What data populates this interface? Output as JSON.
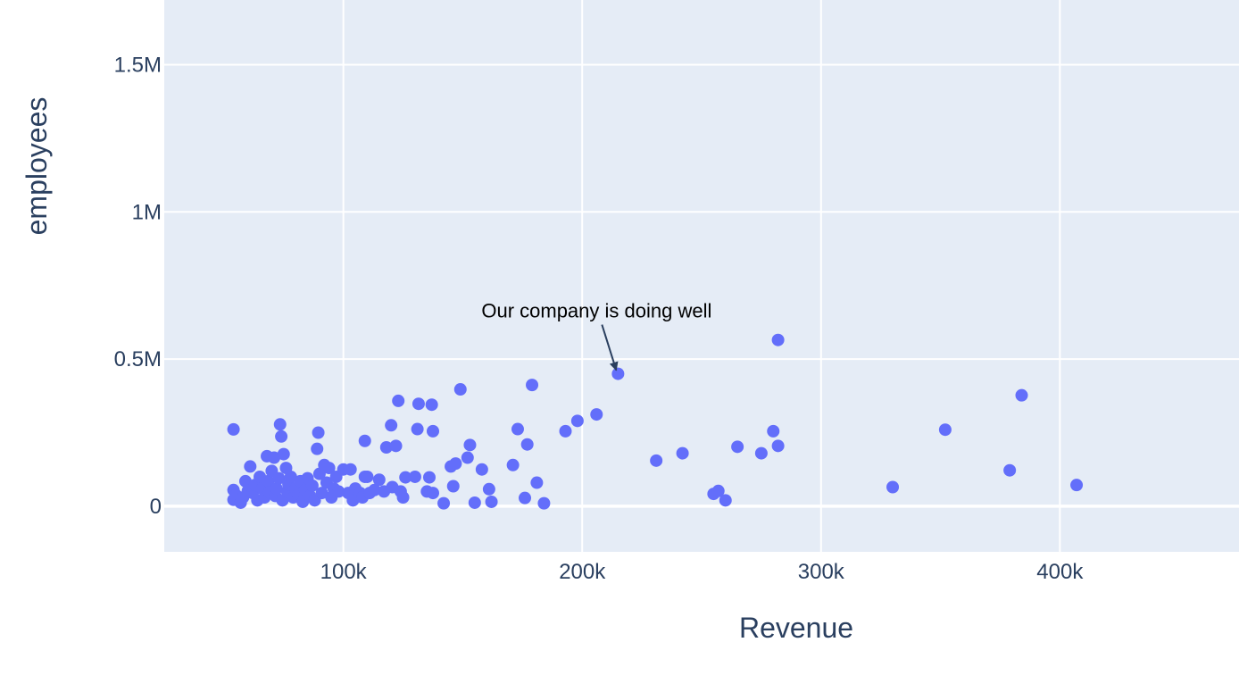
{
  "chart_data": {
    "type": "scatter",
    "xlabel": "Revenue",
    "ylabel": "employees",
    "xlim": [
      25000,
      475000
    ],
    "ylim": [
      -155000,
      1720000
    ],
    "x_ticks": [
      {
        "value": 100000,
        "label": "100k"
      },
      {
        "value": 200000,
        "label": "200k"
      },
      {
        "value": 300000,
        "label": "300k"
      },
      {
        "value": 400000,
        "label": "400k"
      }
    ],
    "y_ticks": [
      {
        "value": 0,
        "label": "0"
      },
      {
        "value": 500000,
        "label": "0.5M"
      },
      {
        "value": 1000000,
        "label": "1M"
      },
      {
        "value": 1500000,
        "label": "1.5M"
      }
    ],
    "grid": true,
    "colors": {
      "background": "#e5ecf6",
      "grid": "#ffffff",
      "marker": "#636efa",
      "text": "#2a3f5f"
    },
    "annotation": {
      "text": "Our company is doing well",
      "x": 215000,
      "y": 450000
    },
    "series": [
      {
        "points": [
          [
            54000,
            261000
          ],
          [
            54000,
            55000
          ],
          [
            54000,
            22000
          ],
          [
            55000,
            38000
          ],
          [
            57000,
            12000
          ],
          [
            58000,
            30000
          ],
          [
            59000,
            85000
          ],
          [
            60000,
            52000
          ],
          [
            61000,
            135000
          ],
          [
            62000,
            45000
          ],
          [
            63000,
            72000
          ],
          [
            64000,
            20000
          ],
          [
            65000,
            100000
          ],
          [
            66000,
            60000
          ],
          [
            67000,
            30000
          ],
          [
            68000,
            170000
          ],
          [
            68500,
            85000
          ],
          [
            69000,
            48000
          ],
          [
            70000,
            120000
          ],
          [
            71000,
            165000
          ],
          [
            71500,
            35000
          ],
          [
            72000,
            60000
          ],
          [
            73000,
            95000
          ],
          [
            73500,
            278000
          ],
          [
            74000,
            237000
          ],
          [
            74500,
            20000
          ],
          [
            75000,
            177000
          ],
          [
            76000,
            130000
          ],
          [
            76500,
            50000
          ],
          [
            77000,
            75000
          ],
          [
            78000,
            100000
          ],
          [
            79000,
            30000
          ],
          [
            80000,
            60000
          ],
          [
            81000,
            40000
          ],
          [
            82000,
            85000
          ],
          [
            83000,
            15000
          ],
          [
            84000,
            55000
          ],
          [
            85000,
            95000
          ],
          [
            86000,
            35000
          ],
          [
            87000,
            70000
          ],
          [
            88000,
            20000
          ],
          [
            89000,
            195000
          ],
          [
            89500,
            250000
          ],
          [
            90000,
            110000
          ],
          [
            91000,
            45000
          ],
          [
            92000,
            140000
          ],
          [
            93000,
            80000
          ],
          [
            94000,
            130000
          ],
          [
            95000,
            30000
          ],
          [
            96000,
            60000
          ],
          [
            97000,
            100000
          ],
          [
            98000,
            50000
          ],
          [
            100000,
            125000
          ],
          [
            102000,
            45000
          ],
          [
            103000,
            125000
          ],
          [
            104000,
            20000
          ],
          [
            105000,
            60000
          ],
          [
            107000,
            45000
          ],
          [
            108000,
            30000
          ],
          [
            109000,
            100000
          ],
          [
            109000,
            222000
          ],
          [
            110000,
            100000
          ],
          [
            111000,
            45000
          ],
          [
            113000,
            55000
          ],
          [
            115000,
            90000
          ],
          [
            117000,
            50000
          ],
          [
            118000,
            200000
          ],
          [
            120000,
            275000
          ],
          [
            120500,
            65000
          ],
          [
            122000,
            205000
          ],
          [
            123000,
            358000
          ],
          [
            124000,
            50000
          ],
          [
            125000,
            30000
          ],
          [
            126000,
            98000
          ],
          [
            130000,
            100000
          ],
          [
            131000,
            262000
          ],
          [
            131500,
            348000
          ],
          [
            135000,
            50000
          ],
          [
            136000,
            98000
          ],
          [
            137000,
            345000
          ],
          [
            137500,
            255000
          ],
          [
            137500,
            45000
          ],
          [
            142000,
            10000
          ],
          [
            145000,
            135000
          ],
          [
            146000,
            68000
          ],
          [
            147000,
            145000
          ],
          [
            149000,
            397000
          ],
          [
            152000,
            165000
          ],
          [
            153000,
            208000
          ],
          [
            155000,
            12000
          ],
          [
            158000,
            125000
          ],
          [
            161000,
            58000
          ],
          [
            162000,
            15000
          ],
          [
            171000,
            140000
          ],
          [
            173000,
            262000
          ],
          [
            176000,
            28000
          ],
          [
            177000,
            210000
          ],
          [
            179000,
            412000
          ],
          [
            181000,
            80000
          ],
          [
            184000,
            10000
          ],
          [
            193000,
            255000
          ],
          [
            198000,
            290000
          ],
          [
            206000,
            312000
          ],
          [
            215000,
            450000
          ],
          [
            231000,
            155000
          ],
          [
            242000,
            180000
          ],
          [
            255000,
            42000
          ],
          [
            257000,
            52000
          ],
          [
            260000,
            20000
          ],
          [
            265000,
            202000
          ],
          [
            275000,
            180000
          ],
          [
            280000,
            255000
          ],
          [
            282000,
            205000
          ],
          [
            282000,
            565000
          ],
          [
            330000,
            65000
          ],
          [
            352000,
            260000
          ],
          [
            379000,
            122000
          ],
          [
            384000,
            377000
          ],
          [
            407000,
            72000
          ]
        ]
      }
    ]
  }
}
